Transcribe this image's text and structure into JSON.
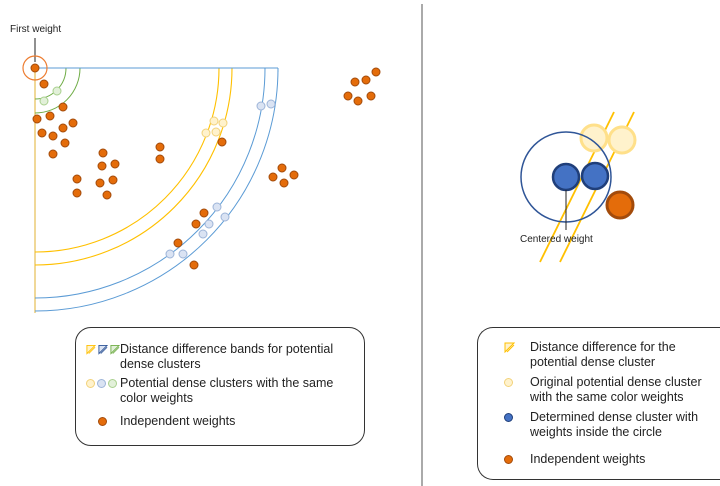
{
  "left_panel": {
    "first_weight_label": "First weight",
    "legend": {
      "bands": "Distance difference bands for potential dense clusters",
      "clusters": "Potential dense clusters with the same color weights",
      "independent": "Independent weights"
    }
  },
  "right_panel": {
    "centered_weight_label": "Centered weight",
    "legend": {
      "band": "Distance difference for the potential dense cluster",
      "original": "Original potential dense cluster with the same color weights",
      "determined": "Determined dense cluster with weights inside the circle",
      "independent": "Independent weights"
    }
  },
  "colors": {
    "independent": "#e46c0a",
    "determined": "#4472c4",
    "band_yellow": "#ffc000",
    "band_blue": "#5b9bd5",
    "band_green": "#70ad47",
    "first_weight_ring": "#ed7d31",
    "circle": "#2f5597"
  },
  "icons": [
    "band-yellow-icon",
    "band-blue-icon",
    "band-green-icon"
  ]
}
